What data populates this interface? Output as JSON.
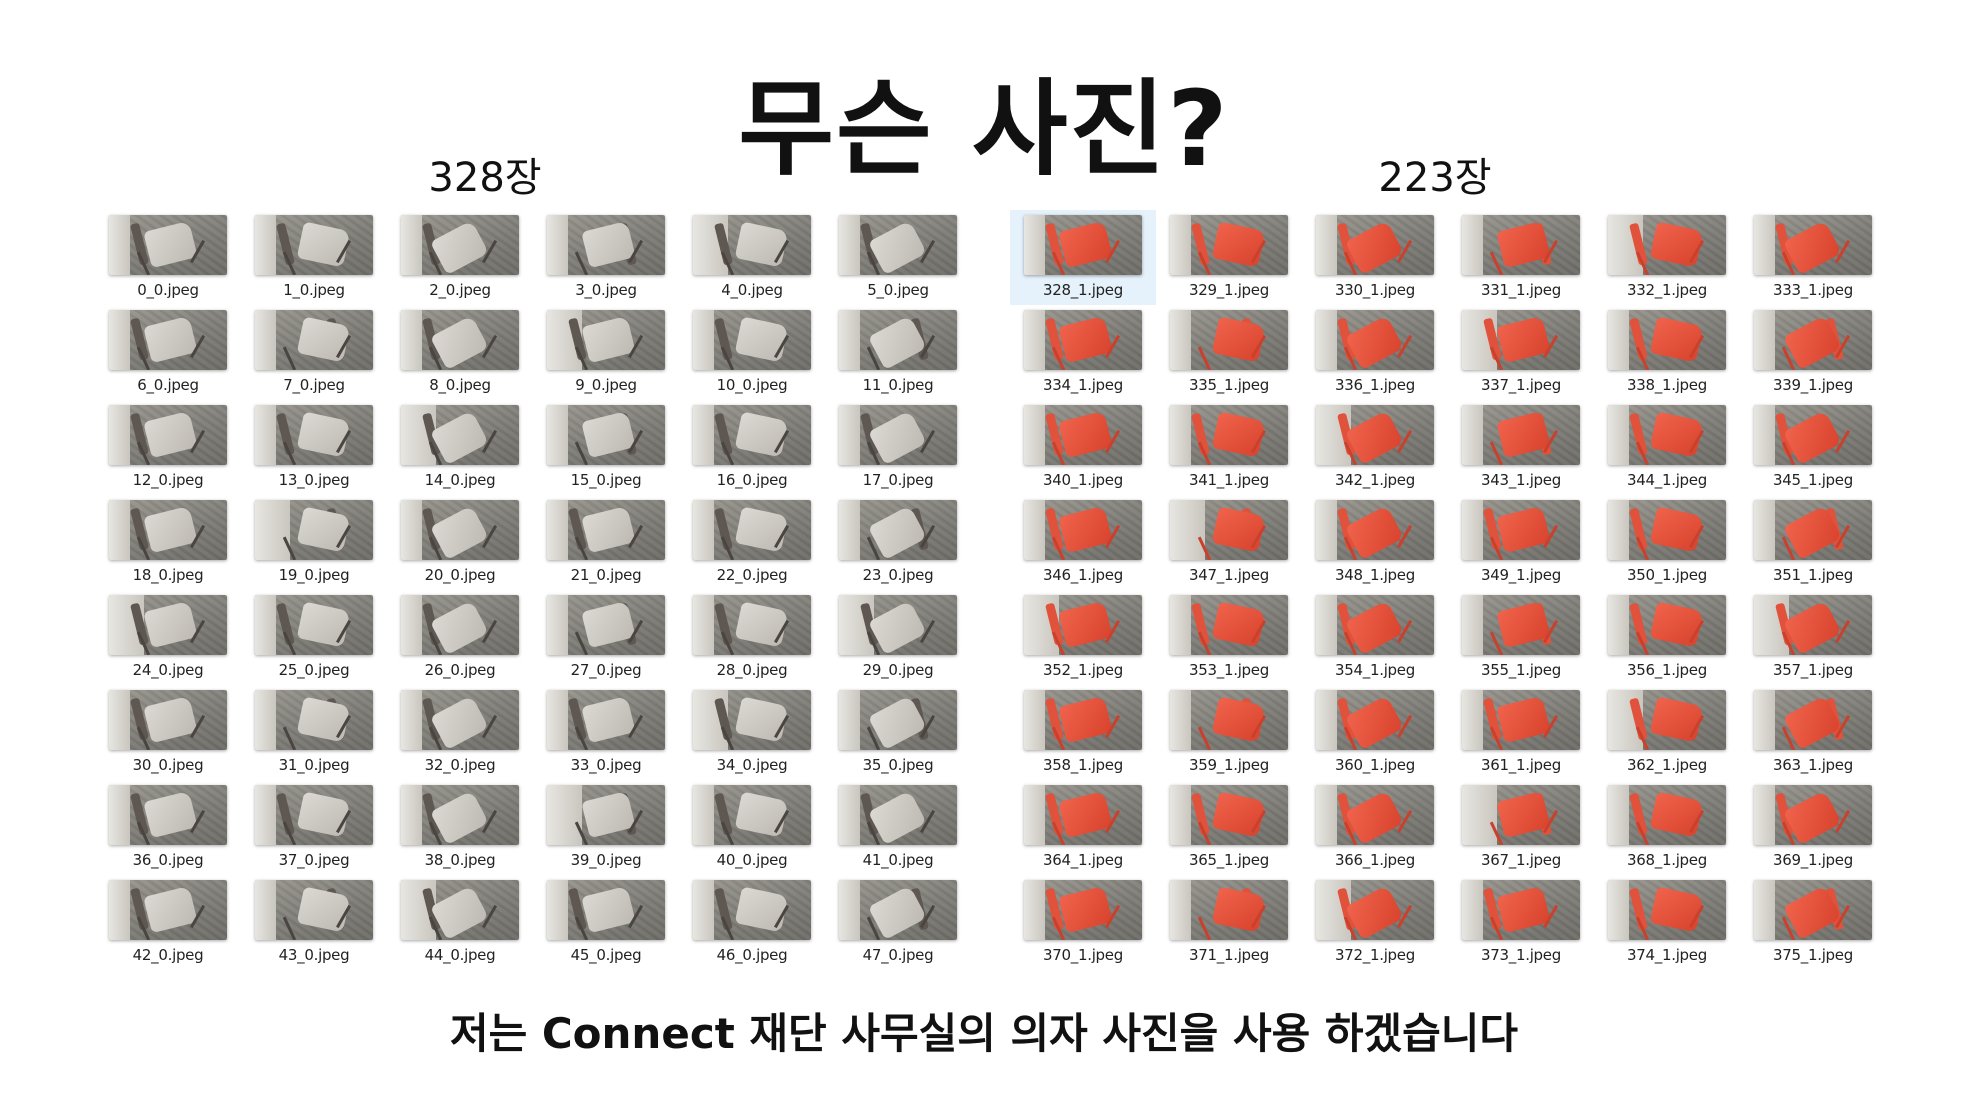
{
  "title": "무슨 사진?",
  "left_panel": {
    "count_label": "328장",
    "thumb_color": "gray",
    "files": [
      "0_0.jpeg",
      "1_0.jpeg",
      "2_0.jpeg",
      "3_0.jpeg",
      "4_0.jpeg",
      "5_0.jpeg",
      "6_0.jpeg",
      "7_0.jpeg",
      "8_0.jpeg",
      "9_0.jpeg",
      "10_0.jpeg",
      "11_0.jpeg",
      "12_0.jpeg",
      "13_0.jpeg",
      "14_0.jpeg",
      "15_0.jpeg",
      "16_0.jpeg",
      "17_0.jpeg",
      "18_0.jpeg",
      "19_0.jpeg",
      "20_0.jpeg",
      "21_0.jpeg",
      "22_0.jpeg",
      "23_0.jpeg",
      "24_0.jpeg",
      "25_0.jpeg",
      "26_0.jpeg",
      "27_0.jpeg",
      "28_0.jpeg",
      "29_0.jpeg",
      "30_0.jpeg",
      "31_0.jpeg",
      "32_0.jpeg",
      "33_0.jpeg",
      "34_0.jpeg",
      "35_0.jpeg",
      "36_0.jpeg",
      "37_0.jpeg",
      "38_0.jpeg",
      "39_0.jpeg",
      "40_0.jpeg",
      "41_0.jpeg",
      "42_0.jpeg",
      "43_0.jpeg",
      "44_0.jpeg",
      "45_0.jpeg",
      "46_0.jpeg",
      "47_0.jpeg"
    ]
  },
  "right_panel": {
    "count_label": "223장",
    "thumb_color": "red",
    "selected_file": "328_1.jpeg",
    "files": [
      "328_1.jpeg",
      "329_1.jpeg",
      "330_1.jpeg",
      "331_1.jpeg",
      "332_1.jpeg",
      "333_1.jpeg",
      "334_1.jpeg",
      "335_1.jpeg",
      "336_1.jpeg",
      "337_1.jpeg",
      "338_1.jpeg",
      "339_1.jpeg",
      "340_1.jpeg",
      "341_1.jpeg",
      "342_1.jpeg",
      "343_1.jpeg",
      "344_1.jpeg",
      "345_1.jpeg",
      "346_1.jpeg",
      "347_1.jpeg",
      "348_1.jpeg",
      "349_1.jpeg",
      "350_1.jpeg",
      "351_1.jpeg",
      "352_1.jpeg",
      "353_1.jpeg",
      "354_1.jpeg",
      "355_1.jpeg",
      "356_1.jpeg",
      "357_1.jpeg",
      "358_1.jpeg",
      "359_1.jpeg",
      "360_1.jpeg",
      "361_1.jpeg",
      "362_1.jpeg",
      "363_1.jpeg",
      "364_1.jpeg",
      "365_1.jpeg",
      "366_1.jpeg",
      "367_1.jpeg",
      "368_1.jpeg",
      "369_1.jpeg",
      "370_1.jpeg",
      "371_1.jpeg",
      "372_1.jpeg",
      "373_1.jpeg",
      "374_1.jpeg",
      "375_1.jpeg"
    ]
  },
  "caption": "저는 Connect 재단 사무실의 의자 사진을 사용 하겠습니다"
}
